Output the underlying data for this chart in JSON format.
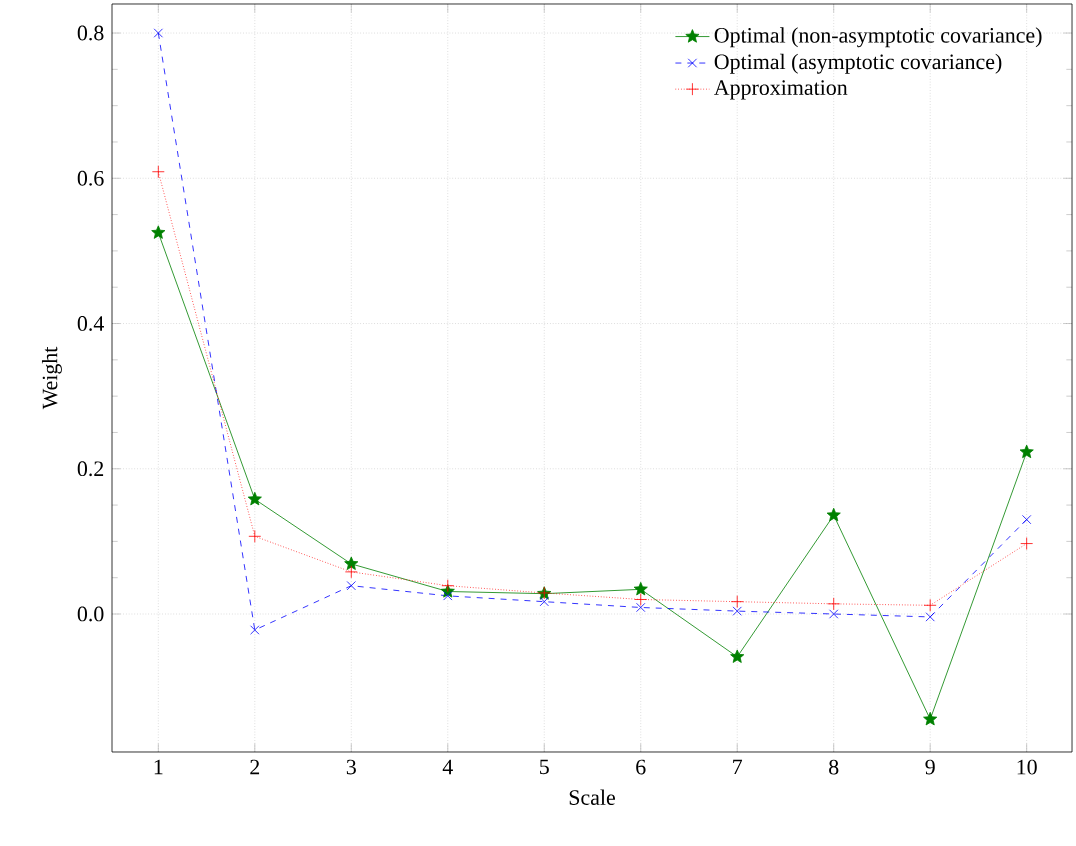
{
  "chart_data": {
    "type": "line",
    "xlabel": "Scale",
    "ylabel": "Weight",
    "x": [
      1,
      2,
      3,
      4,
      5,
      6,
      7,
      8,
      9,
      10
    ],
    "series": [
      {
        "name": "Optimal (non-asymptotic covariance)",
        "color": "#008000",
        "marker": "star",
        "line_style": "solid",
        "values": [
          0.525,
          0.158,
          0.069,
          0.031,
          0.028,
          0.034,
          -0.059,
          0.136,
          -0.145,
          0.223
        ]
      },
      {
        "name": "Optimal (asymptotic covariance)",
        "color": "#0000ff",
        "marker": "cross",
        "line_style": "dashed",
        "values": [
          0.8,
          -0.022,
          0.039,
          0.025,
          0.017,
          0.009,
          0.004,
          0.0,
          -0.004,
          0.13
        ]
      },
      {
        "name": "Approximation",
        "color": "#ff0000",
        "marker": "plus",
        "line_style": "dotted",
        "values": [
          0.609,
          0.107,
          0.058,
          0.039,
          0.029,
          0.02,
          0.017,
          0.014,
          0.012,
          0.097
        ]
      }
    ],
    "xlim": [
      0.52,
      10.47
    ],
    "ylim": [
      -0.19,
      0.84
    ],
    "xticks": [
      1,
      2,
      3,
      4,
      5,
      6,
      7,
      8,
      9,
      10
    ],
    "yticks": [
      {
        "value": 0,
        "label": "0.0"
      },
      0.2,
      0.4,
      0.6,
      0.8
    ],
    "grid": true,
    "legend": "top right"
  }
}
